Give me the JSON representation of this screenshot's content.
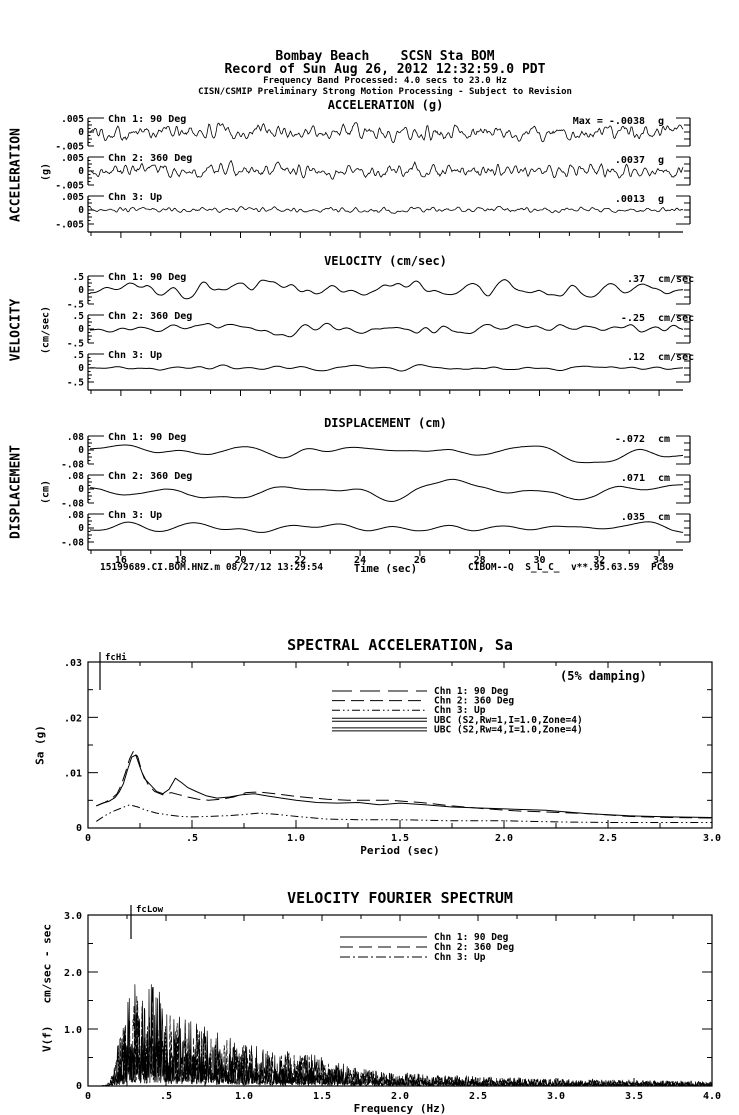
{
  "header": {
    "line1": "Bombay Beach    SCSN Sta BOM",
    "line2": "Record of Sun Aug 26, 2012 12:32:59.0 PDT",
    "line3": "Frequency Band Processed: 4.0 secs to 23.0 Hz",
    "line4": "CISN/CSMIP Preliminary Strong Motion Processing - Subject to Revision"
  },
  "footer": {
    "left": "15199689.CI.BOM.HNZ.m 08/27/12 13:29:54",
    "right": "CIBOM--Q  S_L_C_  v**.95.63.59  PC89"
  },
  "colors": {
    "ink": "#000000",
    "background": "#ffffff"
  },
  "chart_data": [
    {
      "id": "acceleration",
      "type": "line",
      "title": "ACCELERATION (g)",
      "side_label": "ACCELERATION",
      "side_units": "(g)",
      "xlim": [
        15,
        35
      ],
      "ylim_per_channel": [
        -0.005,
        0.005
      ],
      "y_tick_labels": [
        ".005",
        "0",
        "-.005"
      ],
      "channels": [
        {
          "label": "Chn 1: 90 Deg",
          "max_text": "Max =  -.0038",
          "max_value": -0.0038,
          "unit": "g",
          "synth": {
            "seed": 101,
            "n": 640,
            "window": 1,
            "passes": 2,
            "amp": 0.76
          }
        },
        {
          "label": "Chn 2: 360 Deg",
          "max_text": ".0037",
          "max_value": 0.0037,
          "unit": "g",
          "synth": {
            "seed": 202,
            "n": 640,
            "window": 1,
            "passes": 2,
            "amp": 0.74
          }
        },
        {
          "label": "Chn 3: Up",
          "max_text": ".0013",
          "max_value": 0.0013,
          "unit": "g",
          "synth": {
            "seed": 303,
            "n": 640,
            "window": 1,
            "passes": 2,
            "amp": 0.26
          }
        }
      ]
    },
    {
      "id": "velocity",
      "type": "line",
      "title": "VELOCITY (cm/sec)",
      "side_label": "VELOCITY",
      "side_units": "(cm/sec)",
      "xlim": [
        15,
        35
      ],
      "ylim_per_channel": [
        -0.5,
        0.5
      ],
      "y_tick_labels": [
        ".5",
        "0",
        "-.5"
      ],
      "channels": [
        {
          "label": "Chn 1: 90 Deg",
          "max_text": ".37",
          "max_value": 0.37,
          "unit": "cm/sec",
          "synth": {
            "seed": 404,
            "n": 600,
            "window": 4,
            "passes": 3,
            "amp": 0.74
          }
        },
        {
          "label": "Chn 2: 360 Deg",
          "max_text": "-.25",
          "max_value": -0.25,
          "unit": "cm/sec",
          "synth": {
            "seed": 505,
            "n": 600,
            "window": 4,
            "passes": 3,
            "amp": 0.55
          }
        },
        {
          "label": "Chn 3: Up",
          "max_text": ".12",
          "max_value": 0.12,
          "unit": "cm/sec",
          "synth": {
            "seed": 606,
            "n": 600,
            "window": 4,
            "passes": 3,
            "amp": 0.24
          }
        }
      ]
    },
    {
      "id": "displacement",
      "type": "line",
      "title": "DISPLACEMENT (cm)",
      "side_label": "DISPLACEMENT",
      "side_units": "(cm)",
      "xlim": [
        15,
        35
      ],
      "ylim_per_channel": [
        -0.08,
        0.08
      ],
      "y_tick_labels": [
        ".08",
        "0",
        "-.08"
      ],
      "x_ticks": [
        "16",
        "18",
        "20",
        "22",
        "24",
        "26",
        "28",
        "30",
        "32",
        "34"
      ],
      "xlabel": "Time (sec)",
      "channels": [
        {
          "label": "Chn 1: 90 Deg",
          "max_text": "-.072",
          "max_value": -0.072,
          "unit": "cm",
          "synth": {
            "seed": 707,
            "n": 600,
            "window": 11,
            "passes": 3,
            "amp": 0.9
          }
        },
        {
          "label": "Chn 2: 360 Deg",
          "max_text": ".071",
          "max_value": 0.071,
          "unit": "cm",
          "synth": {
            "seed": 808,
            "n": 600,
            "window": 11,
            "passes": 3,
            "amp": 0.89
          }
        },
        {
          "label": "Chn 3: Up",
          "max_text": ".035",
          "max_value": 0.035,
          "unit": "cm",
          "synth": {
            "seed": 909,
            "n": 600,
            "window": 11,
            "passes": 3,
            "amp": 0.44
          }
        }
      ]
    },
    {
      "id": "spectral_acceleration",
      "type": "line",
      "title": "SPECTRAL ACCELERATION, Sa",
      "annotation": "(5% damping)",
      "cutoff_label": "fcHi",
      "xlabel": "Period (sec)",
      "ylabel": "Sa (g)",
      "xlim": [
        0,
        3.0
      ],
      "ylim": [
        0,
        0.03
      ],
      "x_tick_labels": [
        "0",
        ".5",
        "1.0",
        "1.5",
        "2.0",
        "2.5",
        "3.0"
      ],
      "x_tick_values": [
        0,
        0.5,
        1.0,
        1.5,
        2.0,
        2.5,
        3.0
      ],
      "y_tick_labels": [
        ".03",
        ".02",
        ".01",
        "0"
      ],
      "y_tick_values": [
        0.03,
        0.02,
        0.01,
        0
      ],
      "legend": [
        {
          "label": "Chn 1: 90 Deg",
          "style": "dash22"
        },
        {
          "label": "Chn 2: 360 Deg",
          "style": "dash13"
        },
        {
          "label": "Chn 3: Up",
          "style": "dashdotdot"
        },
        {
          "label": "UBC (S2,Rw=1,I=1.0,Zone=4)",
          "style": "double"
        },
        {
          "label": "UBC (S2,Rw=4,I=1.0,Zone=4)",
          "style": "double"
        }
      ],
      "series": [
        {
          "name": "Chn 1: 90 Deg",
          "style": "solid",
          "x": [
            0.04,
            0.07,
            0.1,
            0.13,
            0.15,
            0.17,
            0.19,
            0.21,
            0.23,
            0.25,
            0.27,
            0.3,
            0.33,
            0.36,
            0.39,
            0.42,
            0.45,
            0.48,
            0.52,
            0.57,
            0.62,
            0.68,
            0.74,
            0.8,
            0.86,
            0.93,
            1.0,
            1.1,
            1.2,
            1.3,
            1.4,
            1.5,
            1.62,
            1.75,
            1.9,
            2.05,
            2.2,
            2.4,
            2.6,
            2.8,
            3.0
          ],
          "y": [
            0.004,
            0.0045,
            0.0048,
            0.0055,
            0.0065,
            0.008,
            0.0105,
            0.0128,
            0.0132,
            0.011,
            0.009,
            0.0078,
            0.0066,
            0.0062,
            0.007,
            0.009,
            0.0082,
            0.0073,
            0.0066,
            0.0058,
            0.0054,
            0.0056,
            0.006,
            0.0062,
            0.0058,
            0.0054,
            0.005,
            0.0046,
            0.0045,
            0.0046,
            0.0042,
            0.0045,
            0.0042,
            0.0038,
            0.0036,
            0.0034,
            0.0032,
            0.0026,
            0.0022,
            0.002,
            0.0019
          ]
        },
        {
          "name": "Chn 2: 360 Deg",
          "style": "dash13",
          "x": [
            0.04,
            0.08,
            0.11,
            0.14,
            0.16,
            0.18,
            0.2,
            0.22,
            0.24,
            0.26,
            0.29,
            0.32,
            0.36,
            0.4,
            0.44,
            0.48,
            0.53,
            0.58,
            0.64,
            0.7,
            0.76,
            0.82,
            0.9,
            0.98,
            1.06,
            1.15,
            1.25,
            1.35,
            1.45,
            1.6,
            1.75,
            1.9,
            2.05,
            2.2,
            2.4,
            2.6,
            2.8,
            3.0
          ],
          "y": [
            0.004,
            0.0046,
            0.0052,
            0.0062,
            0.0078,
            0.01,
            0.0125,
            0.014,
            0.0128,
            0.01,
            0.0078,
            0.0066,
            0.006,
            0.0064,
            0.006,
            0.0056,
            0.0052,
            0.005,
            0.0052,
            0.0056,
            0.0064,
            0.0065,
            0.0062,
            0.0058,
            0.0055,
            0.0052,
            0.005,
            0.005,
            0.005,
            0.0046,
            0.004,
            0.0035,
            0.0031,
            0.0029,
            0.0026,
            0.0021,
            0.0019,
            0.0018
          ]
        },
        {
          "name": "Chn 3: Up",
          "style": "dashdotdot",
          "x": [
            0.04,
            0.08,
            0.12,
            0.16,
            0.2,
            0.24,
            0.28,
            0.33,
            0.38,
            0.44,
            0.5,
            0.58,
            0.66,
            0.74,
            0.82,
            0.9,
            1.0,
            1.15,
            1.3,
            1.5,
            1.75,
            2.0,
            2.25,
            2.5,
            2.75,
            3.0
          ],
          "y": [
            0.0012,
            0.0022,
            0.003,
            0.0036,
            0.0042,
            0.0038,
            0.0032,
            0.0027,
            0.0024,
            0.0021,
            0.002,
            0.0021,
            0.0022,
            0.0024,
            0.0027,
            0.0025,
            0.0021,
            0.0016,
            0.0015,
            0.0015,
            0.0013,
            0.0013,
            0.0011,
            0.001,
            0.001,
            0.001
          ]
        },
        {
          "name": "UBC (S2,Rw=1,I=1.0,Zone=4)",
          "style": "double",
          "x": [],
          "y": []
        },
        {
          "name": "UBC (S2,Rw=4,I=1.0,Zone=4)",
          "style": "double",
          "x": [],
          "y": []
        }
      ]
    },
    {
      "id": "velocity_fourier_spectrum",
      "type": "line",
      "title": "VELOCITY FOURIER SPECTRUM",
      "cutoff_label": "fcLow",
      "xlabel": "Frequency (Hz)",
      "ylabel_main": "V(f)",
      "ylabel_units": "cm/sec - sec",
      "xlim": [
        0,
        4.0
      ],
      "ylim": [
        0,
        3.0
      ],
      "x_tick_labels": [
        "0",
        ".5",
        "1.0",
        "1.5",
        "2.0",
        "2.5",
        "3.0",
        "3.5",
        "4.0"
      ],
      "x_tick_values": [
        0,
        0.5,
        1.0,
        1.5,
        2.0,
        2.5,
        3.0,
        3.5,
        4.0
      ],
      "y_tick_labels": [
        "3.0",
        "2.0",
        "1.0",
        "0"
      ],
      "y_tick_values": [
        3.0,
        2.0,
        1.0,
        0
      ],
      "legend": [
        {
          "label": "Chn 1: 90 Deg",
          "style": "solid"
        },
        {
          "label": "Chn 2: 360 Deg",
          "style": "dash13"
        },
        {
          "label": "Chn 3: Up",
          "style": "dashdot"
        }
      ],
      "envelope": [
        [
          0.0,
          0.0
        ],
        [
          0.12,
          0.02
        ],
        [
          0.16,
          0.3
        ],
        [
          0.2,
          0.9
        ],
        [
          0.25,
          1.5
        ],
        [
          0.3,
          1.9
        ],
        [
          0.35,
          1.6
        ],
        [
          0.4,
          1.85
        ],
        [
          0.45,
          1.7
        ],
        [
          0.5,
          1.5
        ],
        [
          0.58,
          1.3
        ],
        [
          0.66,
          1.2
        ],
        [
          0.75,
          1.05
        ],
        [
          0.85,
          0.95
        ],
        [
          0.95,
          0.85
        ],
        [
          1.05,
          0.75
        ],
        [
          1.2,
          0.65
        ],
        [
          1.35,
          0.6
        ],
        [
          1.5,
          0.55
        ],
        [
          1.65,
          0.38
        ],
        [
          1.85,
          0.28
        ],
        [
          2.1,
          0.22
        ],
        [
          2.4,
          0.18
        ],
        [
          2.7,
          0.15
        ],
        [
          3.0,
          0.13
        ],
        [
          3.4,
          0.11
        ],
        [
          3.7,
          0.1
        ],
        [
          4.0,
          0.08
        ]
      ],
      "channel_scales": [
        1.0,
        0.92,
        0.48
      ],
      "channel_seeds": [
        901,
        902,
        903
      ]
    }
  ]
}
